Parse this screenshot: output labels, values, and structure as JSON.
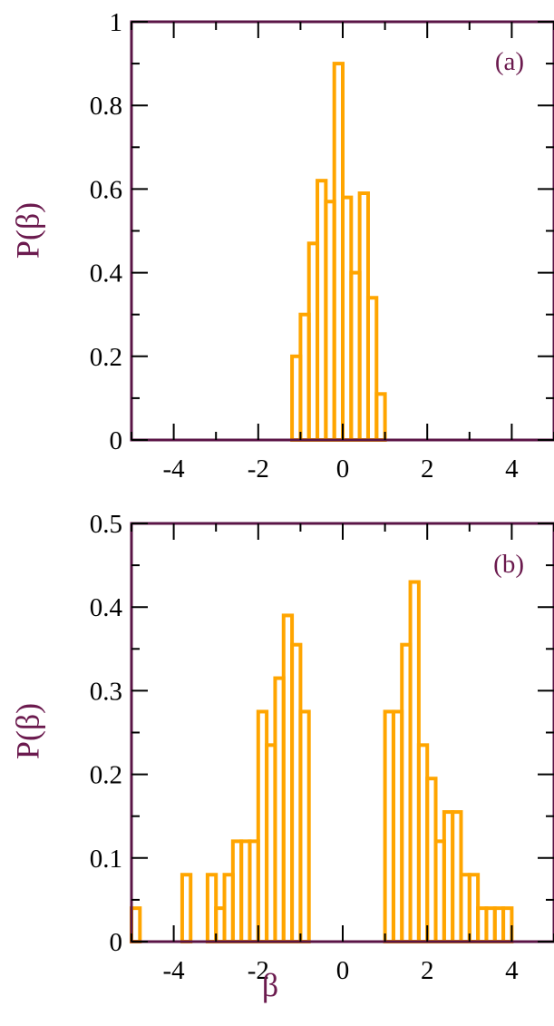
{
  "colors": {
    "frame": "#5a1446",
    "bars": "#ffa500",
    "label": "#6b1a4e",
    "tick_text": "#000000"
  },
  "chart_data": [
    {
      "type": "bar",
      "panel_label": "(a)",
      "ylabel": "P(β)",
      "xlabel": "",
      "xlim": [
        -5,
        5
      ],
      "ylim": [
        0,
        1
      ],
      "xticks": [
        -4,
        -2,
        0,
        2,
        4
      ],
      "xtick_labels": [
        "-4",
        "-2",
        "0",
        "2",
        "4"
      ],
      "yticks": [
        0,
        0.2,
        0.4,
        0.6,
        0.8,
        1
      ],
      "ytick_labels": [
        "0",
        "0.2",
        "0.4",
        "0.6",
        "0.8",
        "1"
      ],
      "bin_width": 0.2,
      "bins": [
        {
          "x": -1.1,
          "y": 0.2
        },
        {
          "x": -0.9,
          "y": 0.3
        },
        {
          "x": -0.7,
          "y": 0.47
        },
        {
          "x": -0.5,
          "y": 0.62
        },
        {
          "x": -0.3,
          "y": 0.57
        },
        {
          "x": -0.1,
          "y": 0.9
        },
        {
          "x": 0.1,
          "y": 0.58
        },
        {
          "x": 0.3,
          "y": 0.4
        },
        {
          "x": 0.5,
          "y": 0.59
        },
        {
          "x": 0.7,
          "y": 0.34
        },
        {
          "x": 0.9,
          "y": 0.11
        }
      ]
    },
    {
      "type": "bar",
      "panel_label": "(b)",
      "ylabel": "P(β)",
      "xlabel": "β",
      "xlim": [
        -5,
        5
      ],
      "ylim": [
        0,
        0.5
      ],
      "xticks": [
        -4,
        -2,
        0,
        2,
        4
      ],
      "xtick_labels": [
        "-4",
        "-2",
        "0",
        "2",
        "4"
      ],
      "yticks": [
        0,
        0.1,
        0.2,
        0.3,
        0.4,
        0.5
      ],
      "ytick_labels": [
        "0",
        "0.1",
        "0.2",
        "0.3",
        "0.4",
        "0.5"
      ],
      "bin_width": 0.2,
      "bins": [
        {
          "x": -4.9,
          "y": 0.04
        },
        {
          "x": -3.7,
          "y": 0.08
        },
        {
          "x": -3.1,
          "y": 0.08
        },
        {
          "x": -2.9,
          "y": 0.04
        },
        {
          "x": -2.7,
          "y": 0.08
        },
        {
          "x": -2.5,
          "y": 0.12
        },
        {
          "x": -2.3,
          "y": 0.12
        },
        {
          "x": -2.1,
          "y": 0.12
        },
        {
          "x": -1.9,
          "y": 0.275
        },
        {
          "x": -1.7,
          "y": 0.235
        },
        {
          "x": -1.5,
          "y": 0.315
        },
        {
          "x": -1.3,
          "y": 0.39
        },
        {
          "x": -1.1,
          "y": 0.355
        },
        {
          "x": -0.9,
          "y": 0.275
        },
        {
          "x": 1.1,
          "y": 0.275
        },
        {
          "x": 1.3,
          "y": 0.275
        },
        {
          "x": 1.5,
          "y": 0.355
        },
        {
          "x": 1.7,
          "y": 0.43
        },
        {
          "x": 1.9,
          "y": 0.235
        },
        {
          "x": 2.1,
          "y": 0.195
        },
        {
          "x": 2.3,
          "y": 0.12
        },
        {
          "x": 2.5,
          "y": 0.155
        },
        {
          "x": 2.7,
          "y": 0.155
        },
        {
          "x": 2.9,
          "y": 0.08
        },
        {
          "x": 3.1,
          "y": 0.08
        },
        {
          "x": 3.3,
          "y": 0.04
        },
        {
          "x": 3.5,
          "y": 0.04
        },
        {
          "x": 3.7,
          "y": 0.04
        },
        {
          "x": 3.9,
          "y": 0.04
        }
      ]
    }
  ]
}
